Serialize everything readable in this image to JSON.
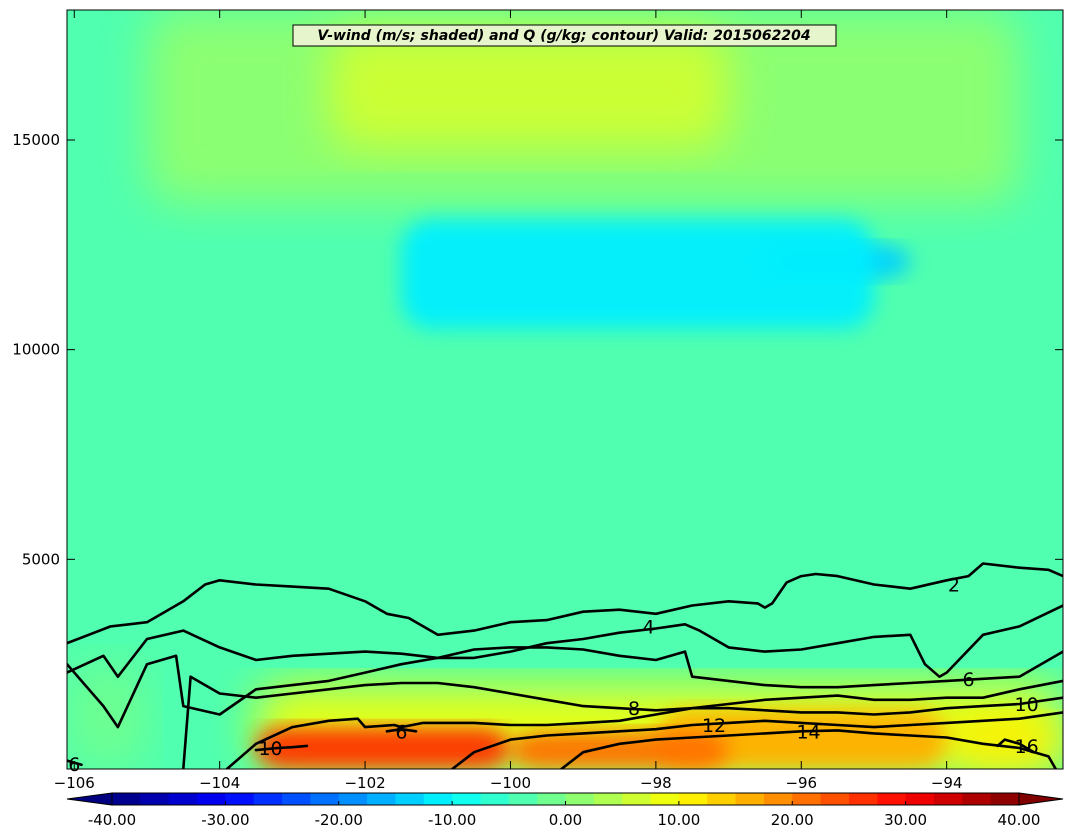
{
  "chart_data": {
    "type": "heatmap",
    "title": "V-wind (m/s; shaded) and Q (g/kg; contour) Valid: 2015062204",
    "xlim": [
      -106.1,
      -92.4
    ],
    "ylim": [
      0,
      18100
    ],
    "x_ticks": [
      -106,
      -104,
      -102,
      -100,
      -98,
      -96,
      -94
    ],
    "x_tick_labels": [
      "−106",
      "−104",
      "−102",
      "−100",
      "−98",
      "−96",
      "−94"
    ],
    "y_ticks": [
      5000,
      10000,
      15000
    ],
    "y_tick_labels": [
      "5000",
      "10000",
      "15000"
    ],
    "colorbar": {
      "orientation": "horizontal",
      "extend": "both",
      "range": [
        -40,
        40
      ],
      "step": 2.5,
      "tick_values": [
        -40,
        -30,
        -20,
        -10,
        0,
        10,
        20,
        30,
        40
      ],
      "tick_labels": [
        "-40.00",
        "-30.00",
        "-20.00",
        "-10.00",
        "0.00",
        "10.00",
        "20.00",
        "30.00",
        "40.00"
      ]
    },
    "shaded_field": {
      "name": "V-wind",
      "units": "m/s",
      "background_value": -5,
      "regions": [
        {
          "x": [
            -103.5,
            -100
          ],
          "y": [
            0,
            1000
          ],
          "value": 27
        },
        {
          "x": [
            -100,
            -97
          ],
          "y": [
            0,
            900
          ],
          "value": 22
        },
        {
          "x": [
            -98,
            -94
          ],
          "y": [
            0,
            1400
          ],
          "value": 16
        },
        {
          "x": [
            -94,
            -92.4
          ],
          "y": [
            0,
            1200
          ],
          "value": 12
        },
        {
          "x": [
            -103.5,
            -92.4
          ],
          "y": [
            0,
            2000
          ],
          "value": 8
        },
        {
          "x": [
            -101.5,
            -95
          ],
          "y": [
            10500,
            13100
          ],
          "value": -12
        },
        {
          "x": [
            -96.5,
            -94.5
          ],
          "y": [
            11700,
            12500
          ],
          "value": -15
        },
        {
          "x": [
            -102.5,
            -97
          ],
          "y": [
            14800,
            17600
          ],
          "value": 5
        },
        {
          "x": [
            -105,
            -93
          ],
          "y": [
            13500,
            18100
          ],
          "value": 1
        },
        {
          "x": [
            -106.1,
            -105
          ],
          "y": [
            0,
            2500
          ],
          "value": -1
        }
      ]
    },
    "contours": {
      "name": "Q",
      "units": "g/kg",
      "levels": [
        {
          "level": 2,
          "label": "2",
          "label_pos": [
            -93.9,
            4400
          ],
          "x": [
            -106.1,
            -105.5,
            -105,
            -104.5,
            -104.2,
            -104,
            -103.5,
            -103,
            -102.5,
            -102,
            -101.7,
            -101.4,
            -101,
            -100.5,
            -100,
            -99.5,
            -99,
            -98.5,
            -98,
            -97.5,
            -97,
            -96.6,
            -96.5,
            -96.4,
            -96.2,
            -96,
            -95.8,
            -95.5,
            -95,
            -94.5,
            -94,
            -93.7,
            -93.5,
            -93,
            -92.6,
            -92.4
          ],
          "y": [
            3000,
            3400,
            3500,
            4000,
            4400,
            4500,
            4400,
            4350,
            4300,
            4000,
            3700,
            3600,
            3200,
            3300,
            3500,
            3550,
            3750,
            3800,
            3700,
            3900,
            4000,
            3950,
            3850,
            3950,
            4450,
            4600,
            4650,
            4600,
            4400,
            4300,
            4500,
            4600,
            4900,
            4800,
            4750,
            4600
          ]
        },
        {
          "level": 4,
          "label": "4",
          "label_pos": [
            -98.1,
            3400
          ],
          "x": [
            -106.1,
            -105.6,
            -105.4,
            -105,
            -104.5,
            -104,
            -103.5,
            -103,
            -102.5,
            -102,
            -101.5,
            -101,
            -100.5,
            -100,
            -99.5,
            -99,
            -98.5,
            -98,
            -97.6,
            -97.4,
            -97,
            -96.5,
            -96,
            -95.5,
            -95,
            -94.5,
            -94.3,
            -94.1,
            -94,
            -93.5,
            -93,
            -92.4
          ],
          "y": [
            2300,
            2700,
            2200,
            3100,
            3300,
            2900,
            2600,
            2700,
            2750,
            2800,
            2750,
            2650,
            2650,
            2800,
            3000,
            3100,
            3250,
            3350,
            3450,
            3300,
            2900,
            2800,
            2850,
            3000,
            3150,
            3200,
            2500,
            2200,
            2300,
            3200,
            3400,
            3900
          ]
        },
        {
          "level": 6,
          "label": "6",
          "label_pos": [
            -93.7,
            2150
          ],
          "x": [
            -106.1,
            -105.6,
            -105.4,
            -105,
            -104.6,
            -104.5,
            -104,
            -103.5,
            -103,
            -102.5,
            -102,
            -101.5,
            -101,
            -100.5,
            -100,
            -99.5,
            -99,
            -98.5,
            -98,
            -97.6,
            -97.5,
            -97,
            -96.5,
            -96,
            -95.5,
            -95,
            -94.5,
            -94,
            -93.5,
            -93,
            -92.4
          ],
          "y": [
            2500,
            1500,
            1000,
            2500,
            2700,
            1500,
            1300,
            1900,
            2000,
            2100,
            2300,
            2500,
            2650,
            2850,
            2900,
            2900,
            2850,
            2700,
            2600,
            2800,
            2200,
            2100,
            2000,
            1950,
            1950,
            2000,
            2050,
            2100,
            2150,
            2200,
            2800
          ]
        },
        {
          "level": 8,
          "label": "8",
          "label_pos": [
            -98.3,
            1450
          ],
          "x": [
            -104.5,
            -104.4,
            -104,
            -103.5,
            -103,
            -102.5,
            -102,
            -101.5,
            -101,
            -100.5,
            -100,
            -99.5,
            -99,
            -98.5,
            -98,
            -97.5,
            -97,
            -96.5,
            -96,
            -95.5,
            -95,
            -94.5,
            -94,
            -93.5,
            -93,
            -92.4
          ],
          "y": [
            0,
            2200,
            1800,
            1700,
            1800,
            1900,
            2000,
            2050,
            2050,
            1950,
            1800,
            1650,
            1500,
            1450,
            1400,
            1450,
            1550,
            1650,
            1700,
            1750,
            1650,
            1650,
            1700,
            1700,
            1900,
            2100
          ]
        },
        {
          "level": 10,
          "label": "10",
          "label_pos": [
            -92.9,
            1550
          ],
          "x": [
            -103.9,
            -103.5,
            -103,
            -102.5,
            -102.1,
            -102,
            -101.6,
            -101.5,
            -101.2,
            -101,
            -100.5,
            -100,
            -99.5,
            -99,
            -98.5,
            -98,
            -97.5,
            -97,
            -96.5,
            -96,
            -95.5,
            -95,
            -94.5,
            -94,
            -93.5,
            -93,
            -92.4
          ],
          "y": [
            0,
            600,
            1000,
            1150,
            1200,
            1000,
            1050,
            1000,
            1100,
            1100,
            1100,
            1050,
            1050,
            1100,
            1150,
            1300,
            1450,
            1450,
            1400,
            1350,
            1350,
            1300,
            1350,
            1450,
            1500,
            1550,
            1700
          ]
        },
        {
          "level": 10,
          "label": "10",
          "label_pos": [
            -103.3,
            500
          ],
          "x": [
            -103.5,
            -103.2,
            -103,
            -102.8
          ],
          "y": [
            450,
            500,
            520,
            550
          ]
        },
        {
          "level": 12,
          "label": "12",
          "label_pos": [
            -97.2,
            1050
          ],
          "x": [
            -100.8,
            -100.5,
            -100,
            -99.5,
            -99,
            -98.5,
            -98,
            -97.5,
            -97,
            -96.5,
            -96,
            -95.5,
            -95,
            -94.5,
            -94,
            -93.5,
            -93,
            -92.4
          ],
          "y": [
            0,
            400,
            700,
            800,
            850,
            900,
            950,
            1050,
            1100,
            1150,
            1100,
            1050,
            1000,
            1050,
            1100,
            1150,
            1200,
            1350
          ]
        },
        {
          "level": 14,
          "label": "14",
          "label_pos": [
            -95.9,
            900
          ],
          "x": [
            -99.3,
            -99,
            -98.5,
            -98,
            -97.5,
            -97,
            -96.5,
            -96,
            -95.5,
            -95,
            -94.5,
            -94,
            -93.5,
            -93,
            -92.6,
            -92.5
          ],
          "y": [
            0,
            400,
            600,
            700,
            750,
            800,
            850,
            900,
            920,
            850,
            800,
            750,
            600,
            500,
            300,
            0
          ]
        },
        {
          "level": 16,
          "label": "16",
          "label_pos": [
            -92.9,
            550
          ],
          "x": [
            -93.3,
            -93.2,
            -93,
            -92.8
          ],
          "y": [
            550,
            700,
            600,
            400
          ]
        },
        {
          "level": 6,
          "label": "6",
          "label_pos": [
            -101.5,
            900
          ],
          "x": [
            -101.7,
            -101.5,
            -101.3
          ],
          "y": [
            900,
            950,
            900
          ]
        },
        {
          "level": 6,
          "label": "6",
          "label_pos": [
            -106.0,
            120
          ],
          "x": [
            -106.1,
            -105.9
          ],
          "y": [
            200,
            100
          ]
        }
      ]
    }
  }
}
